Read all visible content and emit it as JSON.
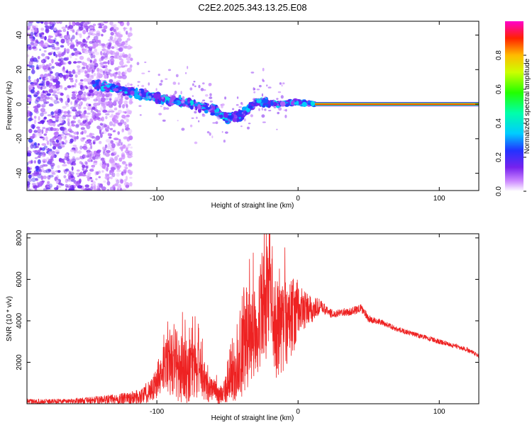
{
  "title": "C2E2.2025.343.13.25.E08",
  "chart_data": [
    {
      "type": "heatmap",
      "xlabel": "Height of straight line (km)",
      "ylabel": "Frequency (Hz)",
      "xlim": [
        -192,
        128
      ],
      "ylim": [
        -50,
        48
      ],
      "xticks": [
        -100,
        0,
        100
      ],
      "yticks": [
        -40,
        -20,
        0,
        20,
        40
      ],
      "colorbar": {
        "label": "Normalized spectral amplitude",
        "range": [
          0,
          1
        ],
        "ticks": [
          "0.0",
          "0.2",
          "0.4",
          "0.6",
          "0.8"
        ]
      },
      "features": [
        {
          "name": "noise",
          "x_range": [
            -192,
            -118
          ],
          "freq_range": [
            -50,
            48
          ],
          "amplitude": 0.1
        },
        {
          "name": "feature-track",
          "points": [
            [
              -145,
              12
            ],
            [
              -125,
              8
            ],
            [
              -100,
              4
            ],
            [
              -80,
              1
            ],
            [
              -60,
              -3
            ],
            [
              -50,
              -8
            ],
            [
              -40,
              -6
            ],
            [
              -28,
              2
            ],
            [
              -15,
              0
            ],
            [
              0,
              1
            ],
            [
              12,
              0
            ]
          ],
          "amplitude": 0.25
        },
        {
          "name": "carrier-line",
          "x_range": [
            12,
            128
          ],
          "frequency": 0,
          "amplitude": 1.0
        }
      ]
    },
    {
      "type": "line",
      "xlabel": "Height of straight line (km)",
      "ylabel": "SNR (10 * v/v)",
      "xlim": [
        -192,
        128
      ],
      "ylim": [
        0,
        8200
      ],
      "xticks": [
        -100,
        0,
        100
      ],
      "yticks": [
        2000,
        4000,
        6000,
        8000
      ],
      "series": [
        {
          "name": "SNR",
          "color": "#ee2222",
          "x": [
            -192,
            -160,
            -140,
            -120,
            -110,
            -100,
            -95,
            -90,
            -85,
            -80,
            -75,
            -70,
            -65,
            -60,
            -55,
            -50,
            -45,
            -40,
            -35,
            -30,
            -25,
            -20,
            -15,
            -10,
            -5,
            0,
            5,
            10,
            15,
            20,
            25,
            30,
            35,
            40,
            45,
            50,
            55,
            60,
            70,
            80,
            90,
            100,
            110,
            120,
            128
          ],
          "mean": [
            100,
            130,
            180,
            250,
            400,
            900,
            1500,
            2200,
            1800,
            1500,
            1700,
            1500,
            1000,
            600,
            400,
            700,
            1400,
            2300,
            3000,
            3800,
            4500,
            5000,
            3500,
            3800,
            4200,
            4500,
            4500,
            4500,
            4700,
            4500,
            4300,
            4450,
            4400,
            4500,
            4600,
            4100,
            4000,
            3900,
            3600,
            3400,
            3200,
            3000,
            2800,
            2600,
            2300
          ],
          "amp": [
            120,
            120,
            200,
            300,
            400,
            800,
            1200,
            1800,
            1700,
            1500,
            1600,
            1300,
            900,
            600,
            400,
            800,
            1400,
            2000,
            2300,
            2500,
            2600,
            2800,
            2500,
            2200,
            2000,
            1500,
            900,
            700,
            400,
            250,
            200,
            200,
            180,
            200,
            220,
            180,
            150,
            150,
            130,
            120,
            120,
            120,
            110,
            120,
            100
          ]
        }
      ]
    }
  ]
}
